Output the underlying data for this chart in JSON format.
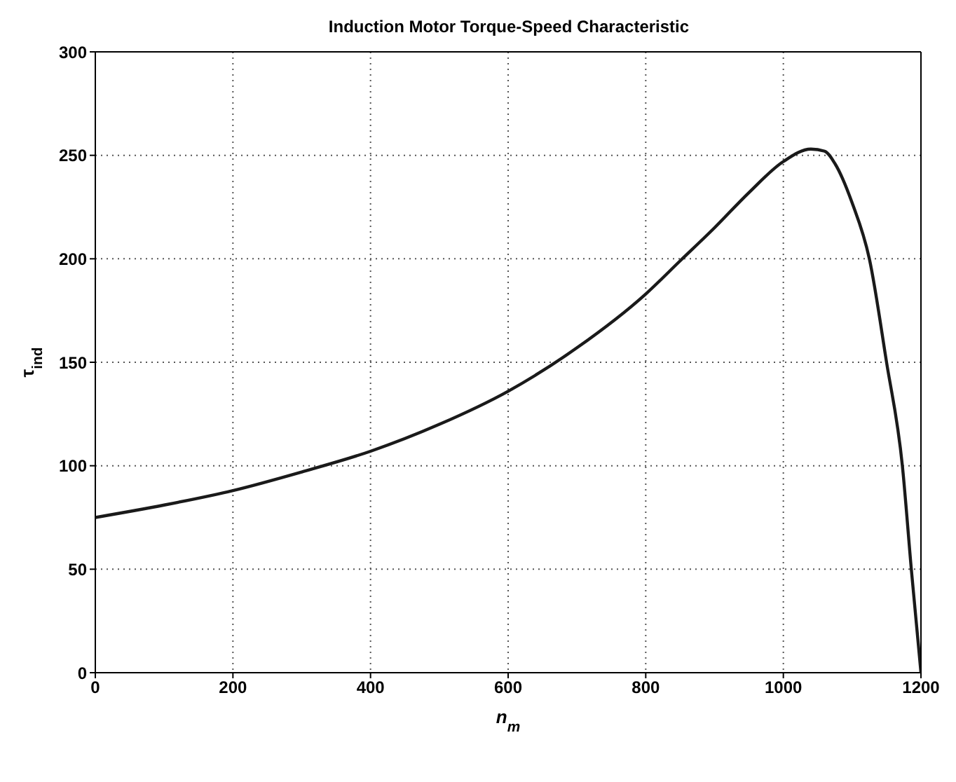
{
  "chart_data": {
    "type": "line",
    "title": "Induction Motor Torque-Speed Characteristic",
    "xlabel": "n$_{m}$",
    "ylabel": "τ$_{ind}$",
    "x": [
      0,
      100,
      200,
      300,
      400,
      500,
      600,
      700,
      800,
      850,
      900,
      950,
      1000,
      1040,
      1060,
      1075,
      1100,
      1125,
      1150,
      1173,
      1186,
      1200
    ],
    "series": [
      {
        "color": "#1a1a1a",
        "values": [
          75,
          81,
          88,
          97,
          107,
          120,
          136,
          157,
          183,
          199,
          215,
          232,
          247,
          253,
          252,
          246,
          227,
          200,
          150,
          100,
          50,
          0
        ]
      }
    ],
    "xlim": [
      0,
      1200
    ],
    "xticks": [
      0,
      200,
      400,
      600,
      800,
      1000,
      1200
    ],
    "ylim": [
      0,
      300
    ],
    "yticks": [
      0,
      50,
      100,
      150,
      200,
      250,
      300
    ],
    "grid": true,
    "line_style": "solid",
    "marker": "none"
  }
}
